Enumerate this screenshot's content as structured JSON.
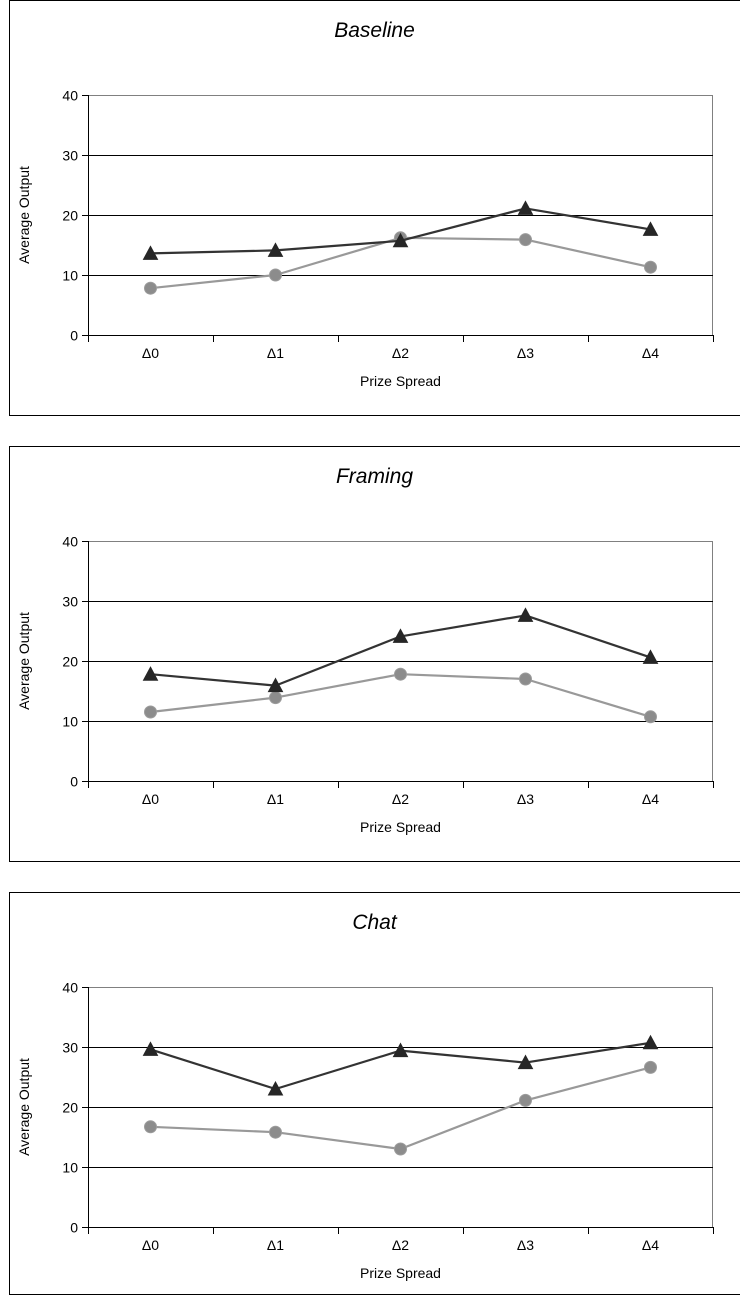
{
  "chart_data": [
    {
      "type": "line",
      "title": "Baseline",
      "xlabel": "Prize Spread",
      "ylabel": "Average Output",
      "categories": [
        "Δ0",
        "Δ1",
        "Δ2",
        "Δ3",
        "Δ4"
      ],
      "ylim": [
        0,
        40
      ],
      "yticks": [
        0,
        10,
        20,
        30,
        40
      ],
      "grid": true,
      "legend": "none",
      "series": [
        {
          "marker": "triangle",
          "color": "#333333",
          "values": [
            13.6,
            14.1,
            15.7,
            21.1,
            17.6
          ]
        },
        {
          "marker": "circle",
          "color": "#999999",
          "values": [
            7.8,
            10.0,
            16.2,
            15.9,
            11.3
          ]
        }
      ]
    },
    {
      "type": "line",
      "title": "Framing",
      "xlabel": "Prize Spread",
      "ylabel": "Average Output",
      "categories": [
        "Δ0",
        "Δ1",
        "Δ2",
        "Δ3",
        "Δ4"
      ],
      "ylim": [
        0,
        40
      ],
      "yticks": [
        0,
        10,
        20,
        30,
        40
      ],
      "grid": true,
      "legend": "none",
      "series": [
        {
          "marker": "triangle",
          "color": "#333333",
          "values": [
            17.8,
            15.9,
            24.1,
            27.6,
            20.6
          ]
        },
        {
          "marker": "circle",
          "color": "#999999",
          "values": [
            11.5,
            13.9,
            17.8,
            17.0,
            10.7
          ]
        }
      ]
    },
    {
      "type": "line",
      "title": "Chat",
      "xlabel": "Prize Spread",
      "ylabel": "Average Output",
      "categories": [
        "Δ0",
        "Δ1",
        "Δ2",
        "Δ3",
        "Δ4"
      ],
      "ylim": [
        0,
        40
      ],
      "yticks": [
        0,
        10,
        20,
        30,
        40
      ],
      "grid": true,
      "legend": "none",
      "series": [
        {
          "marker": "triangle",
          "color": "#333333",
          "values": [
            29.6,
            23.0,
            29.4,
            27.4,
            30.7
          ]
        },
        {
          "marker": "circle",
          "color": "#999999",
          "values": [
            16.7,
            15.8,
            13.0,
            21.1,
            26.6
          ]
        }
      ]
    }
  ]
}
